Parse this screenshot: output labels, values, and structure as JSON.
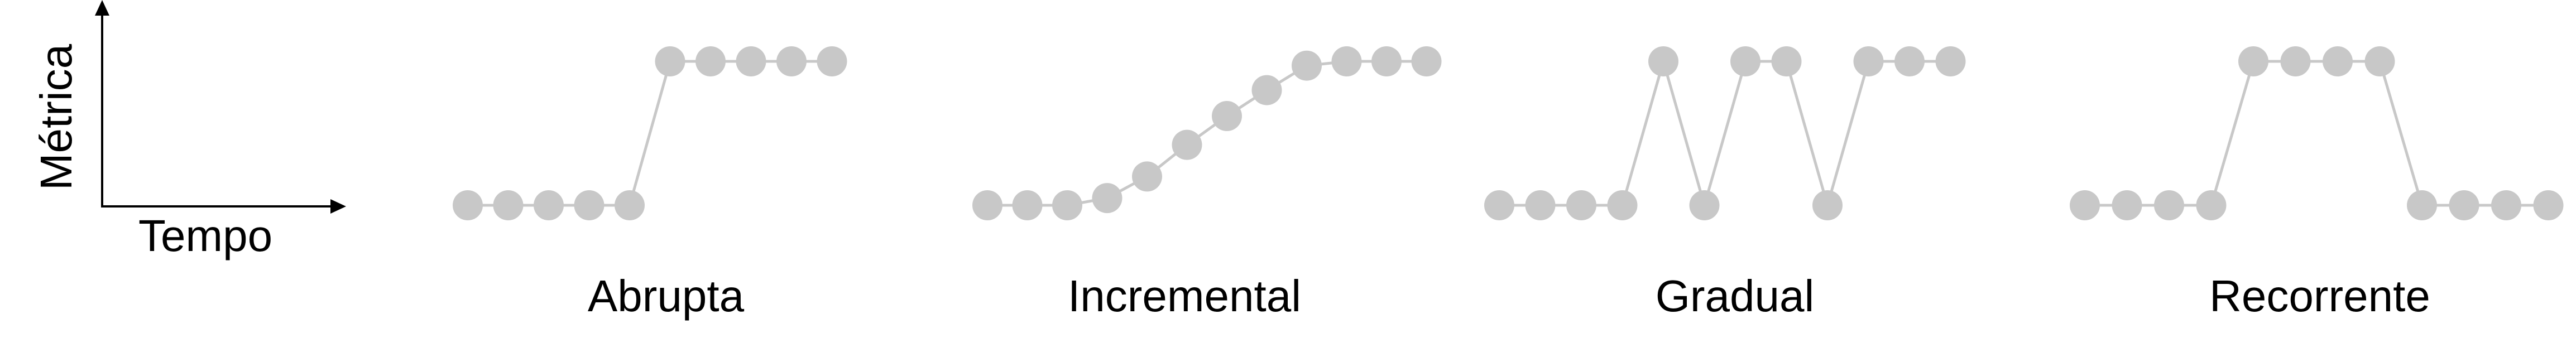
{
  "axis_legend": {
    "y_label": "Métrica",
    "x_label": "Tempo"
  },
  "colors": {
    "point": "#c8c8c8",
    "line": "#c8c8c8",
    "axis": "#000000",
    "text": "#000000"
  },
  "panels": [
    {
      "label": "Abrupta",
      "levels": [
        0,
        0,
        0,
        0,
        0,
        1,
        1,
        1,
        1,
        1
      ]
    },
    {
      "label": "Incremental",
      "levels": [
        0,
        0,
        0,
        0.05,
        0.2,
        0.42,
        0.62,
        0.8,
        0.97,
        1,
        1,
        1
      ]
    },
    {
      "label": "Gradual",
      "levels": [
        0,
        0,
        0,
        0,
        1,
        0,
        1,
        1,
        0,
        1,
        1,
        1
      ]
    },
    {
      "label": "Recorrente",
      "levels": [
        0,
        0,
        0,
        0,
        1,
        1,
        1,
        1,
        0,
        0,
        0,
        0
      ]
    }
  ]
}
